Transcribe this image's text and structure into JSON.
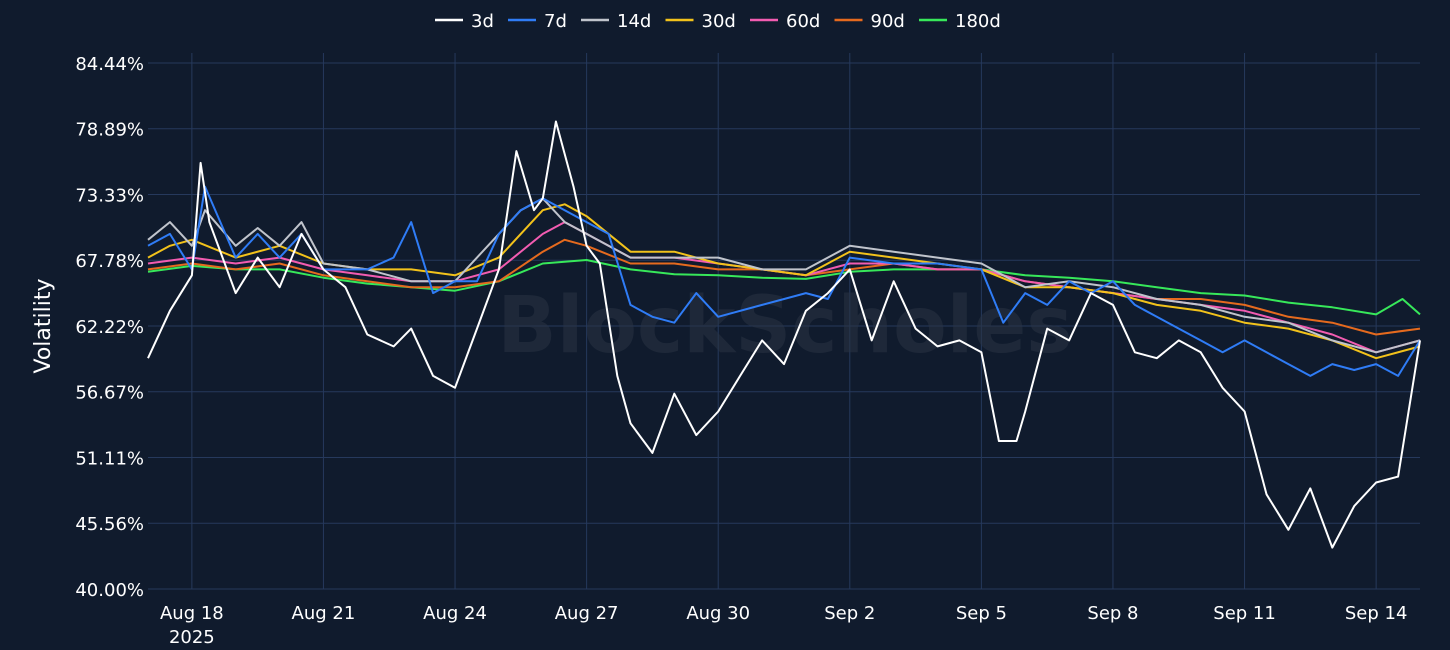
{
  "chart_data": {
    "type": "line",
    "title": "",
    "xlabel": "",
    "ylabel": "Volatility",
    "watermark": "BlockScholes",
    "ylim": [
      40.0,
      84.44
    ],
    "y_ticks": [
      "40.00%",
      "45.56%",
      "51.11%",
      "56.67%",
      "62.22%",
      "67.78%",
      "73.33%",
      "78.89%",
      "84.44%"
    ],
    "x_ticks": [
      {
        "date": "2025-08-18",
        "label": "Aug 18",
        "sublabel": "2025"
      },
      {
        "date": "2025-08-21",
        "label": "Aug 21"
      },
      {
        "date": "2025-08-24",
        "label": "Aug 24"
      },
      {
        "date": "2025-08-27",
        "label": "Aug 27"
      },
      {
        "date": "2025-08-30",
        "label": "Aug 30"
      },
      {
        "date": "2025-09-02",
        "label": "Sep 2"
      },
      {
        "date": "2025-09-05",
        "label": "Sep 5"
      },
      {
        "date": "2025-09-08",
        "label": "Sep 8"
      },
      {
        "date": "2025-09-11",
        "label": "Sep 11"
      },
      {
        "date": "2025-09-14",
        "label": "Sep 14"
      }
    ],
    "xlim": [
      "2025-08-17",
      "2025-09-15"
    ],
    "grid": true,
    "legend_position": "top-center",
    "series": [
      {
        "name": "3d",
        "color": "#ffffff",
        "x": [
          "2025-08-17",
          "2025-08-17.5",
          "2025-08-18",
          "2025-08-18.2",
          "2025-08-18.4",
          "2025-08-19",
          "2025-08-19.5",
          "2025-08-20",
          "2025-08-20.5",
          "2025-08-21",
          "2025-08-21.5",
          "2025-08-22",
          "2025-08-22.6",
          "2025-08-23",
          "2025-08-23.5",
          "2025-08-24",
          "2025-08-24.5",
          "2025-08-25",
          "2025-08-25.4",
          "2025-08-25.8",
          "2025-08-26",
          "2025-08-26.3",
          "2025-08-26.7",
          "2025-08-27",
          "2025-08-27.3",
          "2025-08-27.7",
          "2025-08-28",
          "2025-08-28.5",
          "2025-08-29",
          "2025-08-29.5",
          "2025-08-30",
          "2025-08-30.5",
          "2025-08-31",
          "2025-08-31.5",
          "2025-09-01",
          "2025-09-01.5",
          "2025-09-02",
          "2025-09-02.5",
          "2025-09-03",
          "2025-09-03.5",
          "2025-09-04",
          "2025-09-04.5",
          "2025-09-05",
          "2025-09-05.4",
          "2025-09-05.8",
          "2025-09-06",
          "2025-09-06.5",
          "2025-09-07",
          "2025-09-07.5",
          "2025-09-08",
          "2025-09-08.5",
          "2025-09-09",
          "2025-09-09.5",
          "2025-09-10",
          "2025-09-10.5",
          "2025-09-11",
          "2025-09-11.5",
          "2025-09-12",
          "2025-09-12.5",
          "2025-09-13",
          "2025-09-13.5",
          "2025-09-14",
          "2025-09-14.5",
          "2025-09-15"
        ],
        "y": [
          59.5,
          63.5,
          66.5,
          76,
          71,
          65,
          68,
          65.5,
          70,
          67,
          65.5,
          61.5,
          60.5,
          62,
          58,
          57,
          62,
          67,
          77,
          72,
          73,
          79.5,
          74,
          69,
          67.5,
          58,
          54,
          51.5,
          56.5,
          53,
          55,
          58,
          61,
          59,
          63.5,
          65,
          67,
          61,
          66,
          62,
          60.5,
          61,
          60,
          52.5,
          52.5,
          55,
          62,
          61,
          65,
          64,
          60,
          59.5,
          61,
          60,
          57,
          55,
          48,
          45,
          48.5,
          43.5,
          47,
          49,
          49.5,
          61
        ]
      },
      {
        "name": "7d",
        "color": "#2f7cf6",
        "x": [
          "2025-08-17",
          "2025-08-17.5",
          "2025-08-18",
          "2025-08-18.3",
          "2025-08-19",
          "2025-08-19.5",
          "2025-08-20",
          "2025-08-20.5",
          "2025-08-21",
          "2025-08-22",
          "2025-08-22.6",
          "2025-08-23",
          "2025-08-23.5",
          "2025-08-24",
          "2025-08-24.5",
          "2025-08-25",
          "2025-08-25.5",
          "2025-08-26",
          "2025-08-26.5",
          "2025-08-27",
          "2025-08-27.5",
          "2025-08-28",
          "2025-08-28.5",
          "2025-08-29",
          "2025-08-29.5",
          "2025-08-30",
          "2025-08-31",
          "2025-09-01",
          "2025-09-01.5",
          "2025-09-02",
          "2025-09-03",
          "2025-09-04",
          "2025-09-05",
          "2025-09-05.5",
          "2025-09-06",
          "2025-09-06.5",
          "2025-09-07",
          "2025-09-07.5",
          "2025-09-08",
          "2025-09-08.5",
          "2025-09-09",
          "2025-09-09.5",
          "2025-09-10",
          "2025-09-10.5",
          "2025-09-11",
          "2025-09-11.5",
          "2025-09-12",
          "2025-09-12.5",
          "2025-09-13",
          "2025-09-13.5",
          "2025-09-14",
          "2025-09-14.5",
          "2025-09-15"
        ],
        "y": [
          69,
          70,
          67,
          74,
          68,
          70,
          68,
          70,
          67,
          67,
          68,
          71,
          65,
          66,
          66,
          70,
          72,
          73,
          72,
          71,
          70,
          64,
          63,
          62.5,
          65,
          63,
          64,
          65,
          64.5,
          68,
          67.5,
          67.5,
          67,
          62.5,
          65,
          64,
          66,
          65,
          66,
          64,
          63,
          62,
          61,
          60,
          61,
          60,
          59,
          58,
          59,
          58.5,
          59,
          58,
          61
        ]
      },
      {
        "name": "14d",
        "color": "#c0c4cc",
        "x": [
          "2025-08-17",
          "2025-08-17.5",
          "2025-08-18",
          "2025-08-18.3",
          "2025-08-19",
          "2025-08-19.5",
          "2025-08-20",
          "2025-08-20.5",
          "2025-08-21",
          "2025-08-22",
          "2025-08-23",
          "2025-08-24",
          "2025-08-25",
          "2025-08-25.5",
          "2025-08-26",
          "2025-08-26.5",
          "2025-08-27",
          "2025-08-28",
          "2025-08-29",
          "2025-08-30",
          "2025-08-31",
          "2025-09-01",
          "2025-09-02",
          "2025-09-03",
          "2025-09-04",
          "2025-09-05",
          "2025-09-06",
          "2025-09-07",
          "2025-09-08",
          "2025-09-09",
          "2025-09-10",
          "2025-09-11",
          "2025-09-12",
          "2025-09-13",
          "2025-09-14",
          "2025-09-15"
        ],
        "y": [
          69.5,
          71,
          69,
          72,
          69,
          70.5,
          69,
          71,
          67.5,
          67,
          66,
          66,
          70,
          72,
          73,
          71,
          70,
          68,
          68,
          68,
          67,
          67,
          69,
          68.5,
          68,
          67.5,
          65.5,
          66,
          65.5,
          64.5,
          64,
          63,
          62.5,
          61,
          60,
          61
        ]
      },
      {
        "name": "30d",
        "color": "#f2c21b",
        "x": [
          "2025-08-17",
          "2025-08-17.5",
          "2025-08-18",
          "2025-08-19",
          "2025-08-20",
          "2025-08-21",
          "2025-08-22",
          "2025-08-23",
          "2025-08-24",
          "2025-08-25",
          "2025-08-25.5",
          "2025-08-26",
          "2025-08-26.5",
          "2025-08-27",
          "2025-08-28",
          "2025-08-29",
          "2025-08-30",
          "2025-08-31",
          "2025-09-01",
          "2025-09-02",
          "2025-09-03",
          "2025-09-04",
          "2025-09-05",
          "2025-09-06",
          "2025-09-07",
          "2025-09-08",
          "2025-09-09",
          "2025-09-10",
          "2025-09-11",
          "2025-09-12",
          "2025-09-13",
          "2025-09-14",
          "2025-09-15"
        ],
        "y": [
          68,
          69,
          69.5,
          68,
          69,
          67.5,
          67,
          67,
          66.5,
          68,
          70,
          72,
          72.5,
          71.5,
          68.5,
          68.5,
          67.5,
          67,
          66.5,
          68.5,
          68,
          67.5,
          67,
          65.5,
          65.5,
          65,
          64,
          63.5,
          62.5,
          62,
          61,
          59.5,
          60.5
        ]
      },
      {
        "name": "60d",
        "color": "#f25cb1",
        "x": [
          "2025-08-17",
          "2025-08-18",
          "2025-08-19",
          "2025-08-20",
          "2025-08-21",
          "2025-08-22",
          "2025-08-23",
          "2025-08-24",
          "2025-08-25",
          "2025-08-26",
          "2025-08-26.5",
          "2025-08-27",
          "2025-08-28",
          "2025-08-29",
          "2025-08-30",
          "2025-08-31",
          "2025-09-01",
          "2025-09-02",
          "2025-09-03",
          "2025-09-04",
          "2025-09-05",
          "2025-09-06",
          "2025-09-07",
          "2025-09-08",
          "2025-09-09",
          "2025-09-10",
          "2025-09-11",
          "2025-09-12",
          "2025-09-13",
          "2025-09-14",
          "2025-09-15"
        ],
        "y": [
          67.5,
          68,
          67.5,
          68,
          67,
          66.5,
          66,
          66,
          67,
          70,
          71,
          70,
          68,
          68,
          67.5,
          67,
          66.5,
          67.5,
          67.5,
          67,
          67,
          66,
          65.5,
          65,
          64.5,
          64,
          63.5,
          62.5,
          61.5,
          60,
          61
        ]
      },
      {
        "name": "90d",
        "color": "#e56a1e",
        "x": [
          "2025-08-17",
          "2025-08-18",
          "2025-08-19",
          "2025-08-20",
          "2025-08-21",
          "2025-08-22",
          "2025-08-23",
          "2025-08-24",
          "2025-08-25",
          "2025-08-26",
          "2025-08-26.5",
          "2025-08-27",
          "2025-08-28",
          "2025-08-29",
          "2025-08-30",
          "2025-08-31",
          "2025-09-01",
          "2025-09-02",
          "2025-09-03",
          "2025-09-04",
          "2025-09-05",
          "2025-09-06",
          "2025-09-07",
          "2025-09-08",
          "2025-09-09",
          "2025-09-10",
          "2025-09-11",
          "2025-09-12",
          "2025-09-13",
          "2025-09-14",
          "2025-09-15"
        ],
        "y": [
          67,
          67.5,
          67,
          67.5,
          66.5,
          66,
          65.5,
          65.5,
          66,
          68.5,
          69.5,
          69,
          67.5,
          67.5,
          67,
          67,
          66.5,
          67,
          67.5,
          67,
          67,
          66,
          65.5,
          65,
          64.5,
          64.5,
          64,
          63,
          62.5,
          61.5,
          62
        ]
      },
      {
        "name": "180d",
        "color": "#37e85a",
        "x": [
          "2025-08-17",
          "2025-08-18",
          "2025-08-19",
          "2025-08-20",
          "2025-08-21",
          "2025-08-22",
          "2025-08-23",
          "2025-08-24",
          "2025-08-25",
          "2025-08-26",
          "2025-08-27",
          "2025-08-28",
          "2025-08-29",
          "2025-08-30",
          "2025-08-31",
          "2025-09-01",
          "2025-09-02",
          "2025-09-03",
          "2025-09-04",
          "2025-09-05",
          "2025-09-06",
          "2025-09-07",
          "2025-09-08",
          "2025-09-09",
          "2025-09-10",
          "2025-09-11",
          "2025-09-12",
          "2025-09-13",
          "2025-09-14",
          "2025-09-14.6",
          "2025-09-15"
        ],
        "y": [
          66.8,
          67.3,
          67,
          67,
          66.3,
          65.8,
          65.5,
          65.2,
          66,
          67.5,
          67.8,
          67,
          66.6,
          66.5,
          66.3,
          66.2,
          66.8,
          67,
          67,
          67,
          66.5,
          66.3,
          66,
          65.5,
          65,
          64.8,
          64.2,
          63.8,
          63.2,
          64.5,
          63.2
        ]
      }
    ]
  }
}
